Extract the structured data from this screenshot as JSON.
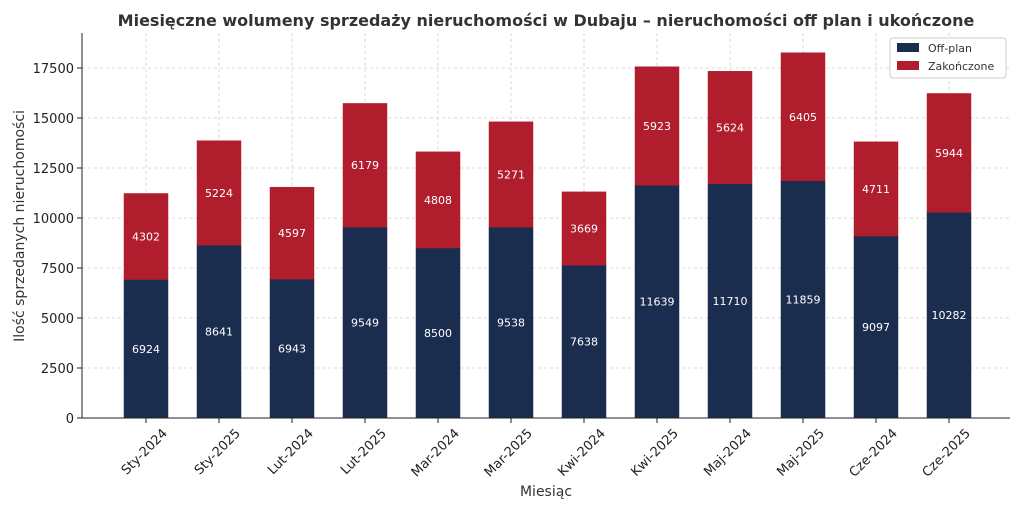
{
  "chart_data": {
    "type": "bar",
    "stacked": true,
    "title": "Miesięczne wolumeny sprzedaży nieruchomości w Dubaju – nieruchomości off plan i ukończone",
    "xlabel": "Miesiąc",
    "ylabel": "Ilość sprzedanych nieruchomości",
    "ylim": [
      0,
      19250
    ],
    "yticks": [
      0,
      2500,
      5000,
      7500,
      10000,
      12500,
      15000,
      17500
    ],
    "ytick_labels": [
      "0",
      "2500",
      "5000",
      "7500",
      "10000",
      "12500",
      "15000",
      "17500"
    ],
    "grid": true,
    "legend_position": "top-right",
    "categories": [
      "Sty-2024",
      "Sty-2025",
      "Lut-2024",
      "Lut-2025",
      "Mar-2024",
      "Mar-2025",
      "Kwi-2024",
      "Kwi-2025",
      "Maj-2024",
      "Maj-2025",
      "Cze-2024",
      "Cze-2025"
    ],
    "series": [
      {
        "name": "Off-plan",
        "color": "#1b2d4f",
        "values": [
          6924,
          8641,
          6943,
          9549,
          8500,
          9538,
          7638,
          11639,
          11710,
          11859,
          9097,
          10282
        ]
      },
      {
        "name": "Zakończone",
        "color": "#b01e2d",
        "values": [
          4302,
          5224,
          4597,
          6179,
          4808,
          5271,
          3669,
          5923,
          5624,
          6405,
          4711,
          5944
        ]
      }
    ]
  }
}
